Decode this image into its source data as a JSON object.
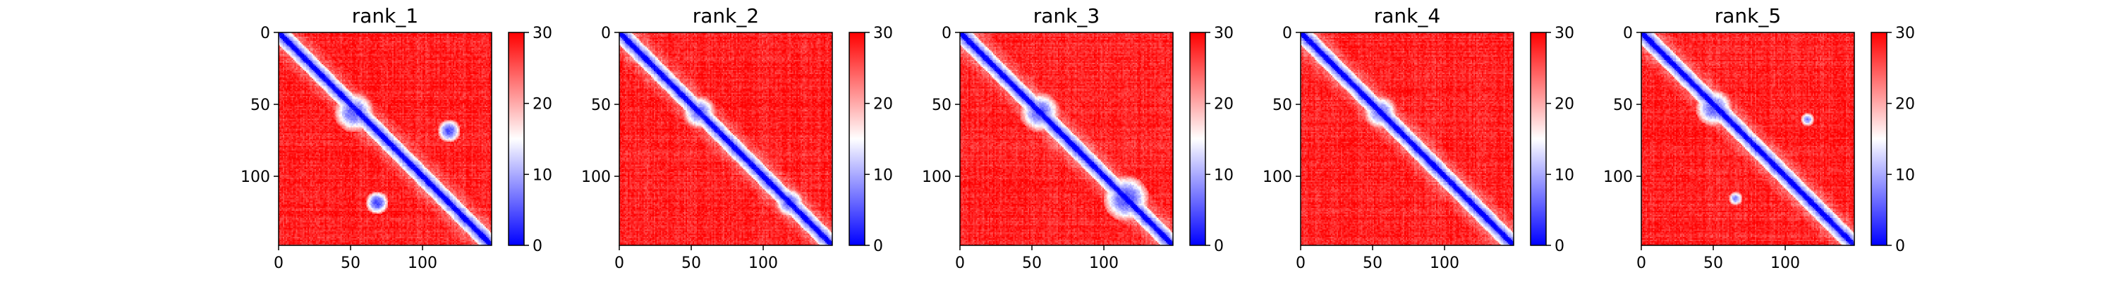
{
  "chart_data": [
    {
      "type": "heatmap",
      "title": "rank_1",
      "x_ticks": [
        0,
        50,
        100
      ],
      "y_ticks": [
        0,
        50,
        100
      ],
      "xlim": [
        0,
        148
      ],
      "ylim": [
        148,
        0
      ],
      "colorbar": {
        "ticks": [
          0,
          10,
          20,
          30
        ],
        "range": [
          0,
          30
        ],
        "colormap": "bwr"
      },
      "features": [
        {
          "x": 52,
          "y": 55,
          "r": 14,
          "value": 4
        },
        {
          "x": 118,
          "y": 68,
          "r": 8,
          "value": 3
        },
        {
          "x": 68,
          "y": 118,
          "r": 8,
          "value": 3
        }
      ]
    },
    {
      "type": "heatmap",
      "title": "rank_2",
      "x_ticks": [
        0,
        50,
        100
      ],
      "y_ticks": [
        0,
        50,
        100
      ],
      "xlim": [
        0,
        148
      ],
      "ylim": [
        148,
        0
      ],
      "colorbar": {
        "ticks": [
          0,
          10,
          20,
          30
        ],
        "range": [
          0,
          30
        ],
        "colormap": "bwr"
      },
      "features": [
        {
          "x": 55,
          "y": 55,
          "r": 12,
          "value": 5
        },
        {
          "x": 118,
          "y": 118,
          "r": 10,
          "value": 4
        }
      ]
    },
    {
      "type": "heatmap",
      "title": "rank_3",
      "x_ticks": [
        0,
        50,
        100
      ],
      "y_ticks": [
        0,
        50,
        100
      ],
      "xlim": [
        0,
        148
      ],
      "ylim": [
        148,
        0
      ],
      "colorbar": {
        "ticks": [
          0,
          10,
          20,
          30
        ],
        "range": [
          0,
          30
        ],
        "colormap": "bwr"
      },
      "features": [
        {
          "x": 55,
          "y": 55,
          "r": 14,
          "value": 4
        },
        {
          "x": 115,
          "y": 115,
          "r": 16,
          "value": 3
        }
      ]
    },
    {
      "type": "heatmap",
      "title": "rank_4",
      "x_ticks": [
        0,
        50,
        100
      ],
      "y_ticks": [
        0,
        50,
        100
      ],
      "xlim": [
        0,
        148
      ],
      "ylim": [
        148,
        0
      ],
      "colorbar": {
        "ticks": [
          0,
          10,
          20,
          30
        ],
        "range": [
          0,
          30
        ],
        "colormap": "bwr"
      },
      "features": [
        {
          "x": 55,
          "y": 55,
          "r": 12,
          "value": 5
        }
      ]
    },
    {
      "type": "heatmap",
      "title": "rank_5",
      "x_ticks": [
        0,
        50,
        100
      ],
      "y_ticks": [
        0,
        50,
        100
      ],
      "xlim": [
        0,
        148
      ],
      "ylim": [
        148,
        0
      ],
      "colorbar": {
        "ticks": [
          0,
          10,
          20,
          30
        ],
        "range": [
          0,
          30
        ],
        "colormap": "bwr"
      },
      "features": [
        {
          "x": 50,
          "y": 52,
          "r": 13,
          "value": 4
        },
        {
          "x": 115,
          "y": 60,
          "r": 5,
          "value": 6
        },
        {
          "x": 65,
          "y": 115,
          "r": 5,
          "value": 6
        }
      ]
    }
  ]
}
